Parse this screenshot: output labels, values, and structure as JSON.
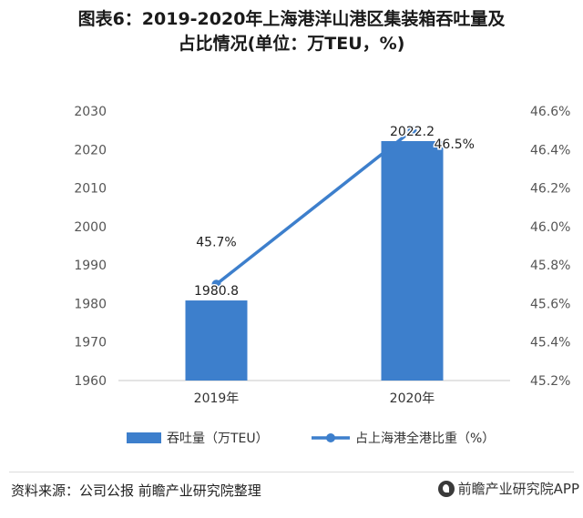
{
  "title_line1": "图表6：2019-2020年上海港洋山港区集装箱吞吐量及",
  "title_line2": "占比情况(单位：万TEU，%)",
  "source": "资料来源：公司公报 前瞻产业研究院整理",
  "brand": "前瞻产业研究院APP",
  "chart_data": {
    "type": "bar",
    "categories": [
      "2019年",
      "2020年"
    ],
    "series": [
      {
        "name": "吞吐量（万TEU）",
        "kind": "bar",
        "axis": "left",
        "values": [
          1980.8,
          2022.2
        ],
        "labels": [
          "1980.8",
          "2022.2"
        ],
        "color": "#3d7fcc"
      },
      {
        "name": "占上海港全港比重（%）",
        "kind": "line",
        "axis": "right",
        "values": [
          45.7,
          46.5
        ],
        "labels": [
          "45.7%",
          "46.5%"
        ],
        "color": "#3d7fcc"
      }
    ],
    "left_axis": {
      "min": 1960,
      "max": 2030,
      "ticks": [
        "1960",
        "1970",
        "1980",
        "1990",
        "2000",
        "2010",
        "2020",
        "2030"
      ]
    },
    "right_axis": {
      "min": 45.2,
      "max": 46.6,
      "ticks": [
        "45.2%",
        "45.4%",
        "45.6%",
        "45.8%",
        "46.0%",
        "46.2%",
        "46.4%",
        "46.6%"
      ]
    },
    "legend_position": "bottom",
    "grid": false
  }
}
